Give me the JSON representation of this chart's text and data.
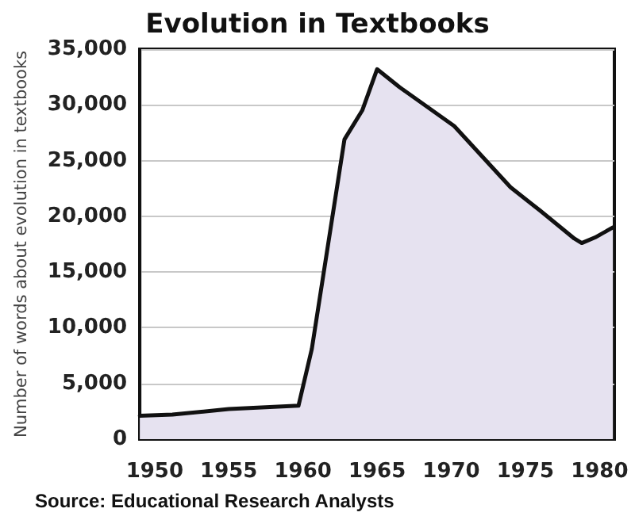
{
  "chart_data": {
    "type": "area",
    "title": "Evolution in Textbooks",
    "ylabel": "Number of words about evolution in textbooks",
    "annotations": [
      "Source: Educational Research Analysts"
    ],
    "x": [
      1949,
      1951.2,
      1955,
      1959.7,
      1960.6,
      1962.8,
      1964,
      1965,
      1966.5,
      1970.2,
      1974,
      1976,
      1978.3,
      1978.8,
      1979.7,
      1980.9
    ],
    "series": [
      {
        "color": "#e6e2f0",
        "values": [
          2100,
          2200,
          2700,
          3000,
          8100,
          26900,
          29500,
          33200,
          31600,
          28100,
          22600,
          20500,
          18000,
          17600,
          18100,
          19000
        ]
      }
    ],
    "xlim": [
      1949,
      1981
    ],
    "xticks": [
      1950,
      1955,
      1960,
      1965,
      1970,
      1975,
      1980
    ],
    "ylim": [
      0,
      35000
    ],
    "yticks": [
      {
        "value": 0,
        "label": "0"
      },
      {
        "value": 5000,
        "label": "5,000"
      },
      {
        "value": 10000,
        "label": "10,000"
      },
      {
        "value": 15000,
        "label": "15,000"
      },
      {
        "value": 20000,
        "label": "20,000"
      },
      {
        "value": 25000,
        "label": "25,000"
      },
      {
        "value": 30000,
        "label": "30,000"
      },
      {
        "value": 35000,
        "label": "35,000"
      }
    ],
    "grid": "y",
    "marker": "none",
    "line_style": "solid"
  }
}
